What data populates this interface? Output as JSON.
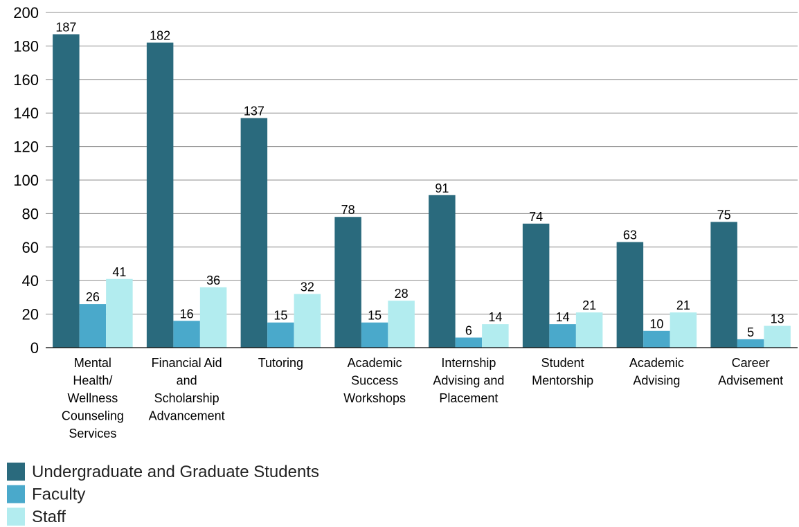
{
  "chart_data": {
    "type": "bar",
    "title": "",
    "xlabel": "",
    "ylabel": "",
    "ylim": [
      0,
      200
    ],
    "yticks": [
      0,
      20,
      40,
      60,
      80,
      100,
      120,
      140,
      160,
      180,
      200
    ],
    "grid": true,
    "legend_position": "bottom-left",
    "categories": [
      [
        "Mental",
        "Health/",
        "Wellness",
        "Counseling",
        "Services"
      ],
      [
        "Financial Aid",
        "and",
        "Scholarship",
        "Advancement"
      ],
      [
        "Tutoring"
      ],
      [
        "Academic",
        "Success",
        "Workshops"
      ],
      [
        "Internship",
        "Advising and",
        "Placement"
      ],
      [
        "Student",
        "Mentorship"
      ],
      [
        "Academic",
        "Advising"
      ],
      [
        "Career",
        "Advisement"
      ]
    ],
    "series": [
      {
        "name": "Undergraduate and Graduate Students",
        "color": "#2a6a7d",
        "values": [
          187,
          182,
          137,
          78,
          91,
          74,
          63,
          75
        ]
      },
      {
        "name": "Faculty",
        "color": "#4aa9cb",
        "values": [
          26,
          16,
          15,
          15,
          6,
          14,
          10,
          5
        ]
      },
      {
        "name": "Staff",
        "color": "#b2ecef",
        "values": [
          41,
          36,
          32,
          28,
          14,
          21,
          21,
          13
        ]
      }
    ]
  }
}
